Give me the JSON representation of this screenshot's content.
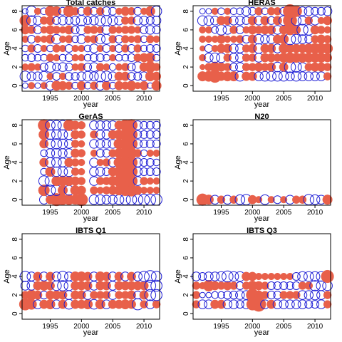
{
  "colors": {
    "positive": "#e8604a",
    "negative": "#1f1fd6",
    "frame": "#000000"
  },
  "chart_data": [
    {
      "type": "scatter",
      "subtype": "bubble-residuals",
      "title": "Total catches",
      "xlabel": "year",
      "ylabel": "Age",
      "xlim": [
        1990.5,
        2012.5
      ],
      "ylim": [
        -0.6,
        8.6
      ],
      "xticks": [
        "1995",
        "2000",
        "2005",
        "2010"
      ],
      "yticks": [
        "0",
        "2",
        "4",
        "6",
        "8"
      ],
      "x": [
        1991,
        1992,
        1993,
        1994,
        1995,
        1996,
        1997,
        1998,
        1999,
        2000,
        2001,
        2002,
        2003,
        2004,
        2005,
        2006,
        2007,
        2008,
        2009,
        2010,
        2011,
        2012
      ],
      "ages": [
        0,
        1,
        2,
        3,
        4,
        5,
        6,
        7,
        8
      ],
      "residuals": [
        [
          -0.2,
          0.3,
          -0.2,
          0.3,
          -0.5,
          0.6,
          0.5,
          0.4,
          -0.3,
          0.5,
          -0.3,
          0.4,
          -0.5,
          0.5,
          -0.3,
          0.5,
          0.4,
          0.6,
          0.3,
          0.5,
          -0.2,
          0.6
        ],
        [
          -0.7,
          -0.5,
          -0.5,
          -0.6,
          0.3,
          -0.4,
          0.3,
          -0.4,
          -0.4,
          -0.5,
          -0.6,
          -0.5,
          -0.8,
          -0.7,
          -0.5,
          0.5,
          0.5,
          -0.4,
          -0.4,
          -0.5,
          0.6,
          0.5
        ],
        [
          0.3,
          0.4,
          0.3,
          -0.4,
          -0.7,
          -0.4,
          -0.5,
          -0.4,
          0.3,
          0.4,
          -0.4,
          -0.5,
          0.4,
          0.3,
          -0.3,
          0.3,
          0.4,
          -0.4,
          -0.7,
          0.5,
          0.8,
          0.4
        ],
        [
          -0.3,
          -0.4,
          -0.3,
          -0.3,
          0.4,
          0.3,
          -0.3,
          -0.4,
          0.3,
          0.3,
          -0.3,
          -0.4,
          -0.4,
          -0.3,
          0.3,
          -0.3,
          -0.3,
          -0.4,
          0.4,
          0.5,
          0.6,
          -0.3
        ],
        [
          -0.3,
          0.4,
          -0.4,
          0.3,
          -0.3,
          0.4,
          0.3,
          -0.4,
          0.3,
          0.3,
          -0.3,
          -0.5,
          0.3,
          -0.4,
          0.3,
          -0.4,
          0.4,
          -0.4,
          0.4,
          -0.3,
          -0.4,
          -0.4
        ],
        [
          0.3,
          -0.4,
          0.3,
          0.3,
          0.5,
          -0.6,
          0.3,
          0.4,
          -0.3,
          -0.5,
          0.3,
          0.4,
          -0.6,
          -0.6,
          0.4,
          -0.4,
          0.4,
          0.3,
          0.4,
          -0.3,
          0.4,
          0.3
        ],
        [
          0.5,
          0.4,
          -0.4,
          0.3,
          0.5,
          0.4,
          0.3,
          0.5,
          -0.4,
          -0.6,
          0.4,
          0.4,
          0.3,
          -0.5,
          0.4,
          0.3,
          0.4,
          0.4,
          0.3,
          -0.4,
          -0.5,
          -0.4
        ],
        [
          0.8,
          -0.6,
          -0.5,
          0.4,
          0.5,
          -0.4,
          -0.5,
          -0.4,
          -0.5,
          -0.7,
          -0.4,
          -0.5,
          -0.7,
          -0.7,
          -0.6,
          -0.5,
          0.4,
          0.4,
          -0.5,
          -0.5,
          -0.4,
          -0.5
        ],
        [
          -0.2,
          -0.7,
          0.3,
          -0.3,
          0.7,
          0.6,
          -0.4,
          0.8,
          0.4,
          -0.4,
          0.5,
          -0.4,
          0.4,
          -0.5,
          -0.4,
          0.3,
          0.5,
          0.4,
          -0.4,
          0.3,
          0.6,
          -0.7
        ]
      ]
    },
    {
      "type": "scatter",
      "subtype": "bubble-residuals",
      "title": "HERAS",
      "xlabel": "year",
      "ylabel": "Age",
      "xlim": [
        1990.5,
        2012.5
      ],
      "ylim": [
        -0.6,
        8.6
      ],
      "xticks": [
        "1995",
        "2000",
        "2005",
        "2010"
      ],
      "yticks": [
        "0",
        "2",
        "4",
        "6",
        "8"
      ],
      "x": [
        1991,
        1992,
        1993,
        1994,
        1995,
        1996,
        1997,
        1998,
        1999,
        2000,
        2001,
        2002,
        2003,
        2004,
        2005,
        2006,
        2007,
        2008,
        2009,
        2010,
        2011,
        2012
      ],
      "ages": [
        1,
        2,
        3,
        4,
        5,
        6,
        7,
        8
      ],
      "residuals": [
        [
          0,
          0.6,
          0.7,
          1.0,
          0.5,
          0.6,
          0.6,
          -0.6,
          0.5,
          0.5,
          -0.5,
          -0.6,
          -0.6,
          -0.6,
          -0.6,
          -0.5,
          -0.6,
          -0.5,
          -0.5,
          -0.5,
          -0.5,
          0.4
        ],
        [
          0,
          0.2,
          0.4,
          0.7,
          0.5,
          0.4,
          -0.4,
          -0.5,
          0.4,
          0.4,
          0.5,
          0.4,
          0.5,
          -0.6,
          0.5,
          -0.8,
          -0.7,
          -0.5,
          0.4,
          0.5,
          0.5,
          0.4
        ],
        [
          0,
          0.3,
          -0.5,
          -0.6,
          -0.6,
          0.4,
          -0.5,
          -0.5,
          0.4,
          0.4,
          -0.5,
          0.5,
          0.5,
          0.4,
          0.6,
          0.7,
          0.6,
          0.6,
          0.6,
          0.6,
          0.6,
          0.5
        ],
        [
          0,
          0.2,
          -0.4,
          0.3,
          0.5,
          0.5,
          -0.5,
          -0.5,
          0.4,
          0.5,
          -0.6,
          0.5,
          0.5,
          -0.5,
          0.6,
          0.5,
          0.5,
          0.5,
          0.6,
          0.7,
          0.7,
          0.7
        ],
        [
          0,
          0.3,
          0.3,
          0.3,
          0.5,
          0.3,
          0.3,
          0.4,
          -0.4,
          0.5,
          -0.6,
          -0.5,
          -0.5,
          0.5,
          0.6,
          -0.8,
          -0.6,
          -0.5,
          -0.4,
          0.4,
          0.5,
          0.4
        ],
        [
          0,
          0.3,
          0.3,
          -0.3,
          -0.7,
          -0.5,
          0.4,
          -0.4,
          0.3,
          0.5,
          0.4,
          0.5,
          0.5,
          -0.5,
          0.5,
          0.7,
          0.5,
          -0.8,
          -0.7,
          0.5,
          0.4,
          0.3
        ],
        [
          0,
          -0.6,
          -0.6,
          -0.5,
          0.5,
          0.5,
          -0.5,
          -0.5,
          -0.4,
          0.5,
          -0.5,
          0.5,
          -0.4,
          0.5,
          -0.6,
          1.2,
          -0.6,
          -0.5,
          0.4,
          -0.5,
          0.3,
          0.5
        ],
        [
          0,
          -0.2,
          -0.2,
          0.3,
          -0.3,
          0.3,
          -0.3,
          -0.3,
          -0.5,
          -0.4,
          0.4,
          -0.3,
          0.4,
          0.4,
          -0.4,
          1.2,
          0.8,
          -0.5,
          -0.5,
          -0.4,
          -0.4,
          -0.5
        ]
      ]
    },
    {
      "type": "scatter",
      "subtype": "bubble-residuals",
      "title": "GerAS",
      "xlabel": "year",
      "ylabel": "Age",
      "xlim": [
        1990.5,
        2012.5
      ],
      "ylim": [
        -0.6,
        8.6
      ],
      "xticks": [
        "1995",
        "2000",
        "2005",
        "2010"
      ],
      "yticks": [
        "0",
        "2",
        "4",
        "6",
        "8"
      ],
      "x": [
        1994,
        1995,
        1996,
        1997,
        1998,
        1999,
        2000,
        2001,
        2002,
        2003,
        2004,
        2005,
        2006,
        2007,
        2008,
        2009,
        2010,
        2011,
        2012
      ],
      "ages": [
        0,
        1,
        2,
        3,
        4,
        5,
        6,
        7,
        8
      ],
      "residuals": [
        [
          -0.5,
          0.5,
          1.0,
          0.7,
          0.7,
          0.6,
          1.0,
          0,
          -0.6,
          -0.6,
          -0.5,
          -0.5,
          -0.6,
          -0.7,
          -0.7,
          -0.7,
          -0.8,
          -0.8,
          -0.8
        ],
        [
          0.8,
          -0.7,
          -0.7,
          0.6,
          -0.6,
          0.6,
          0.5,
          0,
          0.4,
          0.3,
          0.4,
          0.5,
          0.6,
          0.8,
          0.9,
          0.5,
          0.3,
          0.3,
          0.3
        ],
        [
          -0.7,
          -0.7,
          0.6,
          0.7,
          0.6,
          0.5,
          0.4,
          0,
          -0.5,
          0.4,
          0.4,
          0.6,
          0.8,
          0.9,
          0.9,
          -0.5,
          0.4,
          0.3,
          0.3
        ],
        [
          -0.3,
          0.6,
          -0.6,
          -0.6,
          -0.6,
          0.4,
          0.3,
          0,
          -0.5,
          -0.5,
          -0.4,
          0.5,
          0.7,
          0.8,
          0.9,
          -0.5,
          -0.4,
          -0.4,
          -0.4
        ],
        [
          0.5,
          -0.6,
          -0.6,
          -0.5,
          0.5,
          0.4,
          0.3,
          0,
          -0.5,
          0.3,
          0.4,
          -0.5,
          0.7,
          0.9,
          0.9,
          -0.5,
          -0.4,
          -0.4,
          -0.3
        ],
        [
          -0.3,
          -0.5,
          -0.6,
          -0.5,
          -0.5,
          0.5,
          0.4,
          0,
          0.3,
          -0.4,
          -0.4,
          0.4,
          0.6,
          0.9,
          0.8,
          0.4,
          -0.3,
          0.3,
          0.3
        ],
        [
          0.5,
          -0.6,
          -0.7,
          -0.6,
          -0.5,
          0.4,
          0.3,
          0,
          -0.5,
          -0.5,
          -0.5,
          -0.5,
          0.7,
          0.9,
          0.9,
          -0.5,
          -0.4,
          -0.4,
          -0.4
        ],
        [
          0.7,
          -0.6,
          -0.6,
          -0.6,
          -0.6,
          0.5,
          0.4,
          0,
          0.4,
          -0.5,
          -0.5,
          0.5,
          0.6,
          0.8,
          0.9,
          -0.4,
          -0.4,
          -0.4,
          -0.4
        ],
        [
          0.9,
          -0.6,
          -0.6,
          -0.6,
          0.8,
          0.5,
          0.4,
          0,
          -0.5,
          -0.5,
          -0.5,
          -0.5,
          0.5,
          0.8,
          0.9,
          -0.5,
          -0.4,
          -0.4,
          -0.4
        ]
      ]
    },
    {
      "type": "scatter",
      "subtype": "bubble-residuals",
      "title": "N20",
      "xlabel": "year",
      "ylabel": "Age",
      "xlim": [
        1990.5,
        2012.5
      ],
      "ylim": [
        -0.6,
        8.6
      ],
      "xticks": [
        "1995",
        "2000",
        "2005",
        "2010"
      ],
      "yticks": [
        "0",
        "2",
        "4",
        "6",
        "8"
      ],
      "x": [
        1992,
        1993,
        1994,
        1995,
        1996,
        1997,
        1998,
        1999,
        2000,
        2001,
        2002,
        2003,
        2004,
        2005,
        2006,
        2007,
        2008,
        2009,
        2010,
        2011,
        2012
      ],
      "ages": [
        0
      ],
      "residuals": [
        [
          0.9,
          0.6,
          -0.5,
          0.4,
          -0.5,
          0.4,
          -0.6,
          -0.7,
          0.5,
          0.3,
          -0.6,
          0.3,
          -0.4,
          0.3,
          -0.5,
          0.4,
          0.4,
          -0.7,
          -0.6,
          -0.5,
          0.6
        ]
      ]
    },
    {
      "type": "scatter",
      "subtype": "bubble-residuals",
      "title": "IBTS Q1",
      "xlabel": "year",
      "ylabel": "Age",
      "xlim": [
        1990.5,
        2012.5
      ],
      "ylim": [
        -0.6,
        8.6
      ],
      "xticks": [
        "1995",
        "2000",
        "2005",
        "2010"
      ],
      "yticks": [
        "0",
        "2",
        "4",
        "6",
        "8"
      ],
      "x": [
        1991,
        1992,
        1993,
        1994,
        1995,
        1996,
        1997,
        1998,
        1999,
        2000,
        2001,
        2002,
        2003,
        2004,
        2005,
        2006,
        2007,
        2008,
        2009,
        2010,
        2011,
        2012
      ],
      "ages": [
        1,
        2,
        3,
        4
      ],
      "residuals": [
        [
          0.9,
          0.7,
          -0.5,
          0.5,
          0.6,
          -0.5,
          0.5,
          -0.6,
          0.5,
          0.5,
          0.6,
          -0.6,
          0.6,
          -0.5,
          0.5,
          0.5,
          0.6,
          0.5,
          -0.8,
          0.4,
          -0.5,
          0.4
        ],
        [
          0.4,
          0.7,
          0.5,
          -0.4,
          0.5,
          0.5,
          0.5,
          -0.5,
          0.5,
          0.5,
          -0.5,
          0.4,
          0.4,
          0.4,
          -0.5,
          0.4,
          0.4,
          0.5,
          -0.4,
          0.5,
          -0.8,
          -0.8
        ],
        [
          -0.5,
          -0.5,
          0.5,
          0.6,
          0.5,
          -0.6,
          -0.7,
          -0.6,
          0.5,
          0.5,
          0.5,
          -0.5,
          0.5,
          0.5,
          -0.5,
          0.5,
          0.5,
          0.5,
          0.5,
          0.5,
          -0.8,
          -0.8
        ],
        [
          -0.7,
          -0.5,
          0.5,
          -0.5,
          0.5,
          -0.5,
          -0.7,
          -0.5,
          0.6,
          0.6,
          0.5,
          -0.5,
          0.6,
          0.5,
          -0.5,
          0.5,
          -0.5,
          0.5,
          -0.5,
          -0.7,
          -0.9,
          -0.7
        ]
      ]
    },
    {
      "type": "scatter",
      "subtype": "bubble-residuals",
      "title": "IBTS Q3",
      "xlabel": "year",
      "ylabel": "Age",
      "xlim": [
        1990.5,
        2012.5
      ],
      "ylim": [
        -0.6,
        8.6
      ],
      "xticks": [
        "1995",
        "2000",
        "2005",
        "2010"
      ],
      "yticks": [
        "0",
        "2",
        "4",
        "6",
        "8"
      ],
      "x": [
        1991,
        1992,
        1993,
        1994,
        1995,
        1996,
        1997,
        1998,
        1999,
        2000,
        2001,
        2002,
        2003,
        2004,
        2005,
        2006,
        2007,
        2008,
        2009,
        2010,
        2011,
        2012
      ],
      "ages": [
        1,
        2,
        3,
        4
      ],
      "residuals": [
        [
          0.4,
          -0.5,
          -0.5,
          0.5,
          0.5,
          -0.5,
          -0.5,
          -0.4,
          -0.5,
          0.9,
          1.3,
          -0.5,
          0.5,
          -0.5,
          -0.5,
          -0.5,
          -0.5,
          -0.5,
          -0.4,
          -0.4,
          -0.5,
          0.4
        ],
        [
          0.4,
          -0.2,
          -0.2,
          -0.3,
          -0.3,
          -0.4,
          -0.4,
          -0.5,
          -0.5,
          1.0,
          0.5,
          0.4,
          -0.4,
          -0.4,
          0.4,
          0.4,
          0.4,
          -0.5,
          -0.5,
          -0.6,
          -0.5,
          0.4
        ],
        [
          0.4,
          0.3,
          0.8,
          0.5,
          0.4,
          0.5,
          0.4,
          -0.4,
          0.4,
          0.6,
          0.5,
          0.4,
          -0.4,
          -0.4,
          -0.4,
          -0.4,
          -0.4,
          0.4,
          0.4,
          -0.7,
          -0.6,
          -0.6
        ],
        [
          -0.5,
          -0.4,
          -0.5,
          -0.5,
          -0.6,
          -0.8,
          -0.6,
          -0.6,
          0.5,
          0.5,
          0.3,
          0.3,
          0.3,
          0.3,
          0.3,
          0.3,
          -0.4,
          -0.6,
          -0.6,
          -0.6,
          -0.6,
          1.0
        ]
      ]
    }
  ]
}
